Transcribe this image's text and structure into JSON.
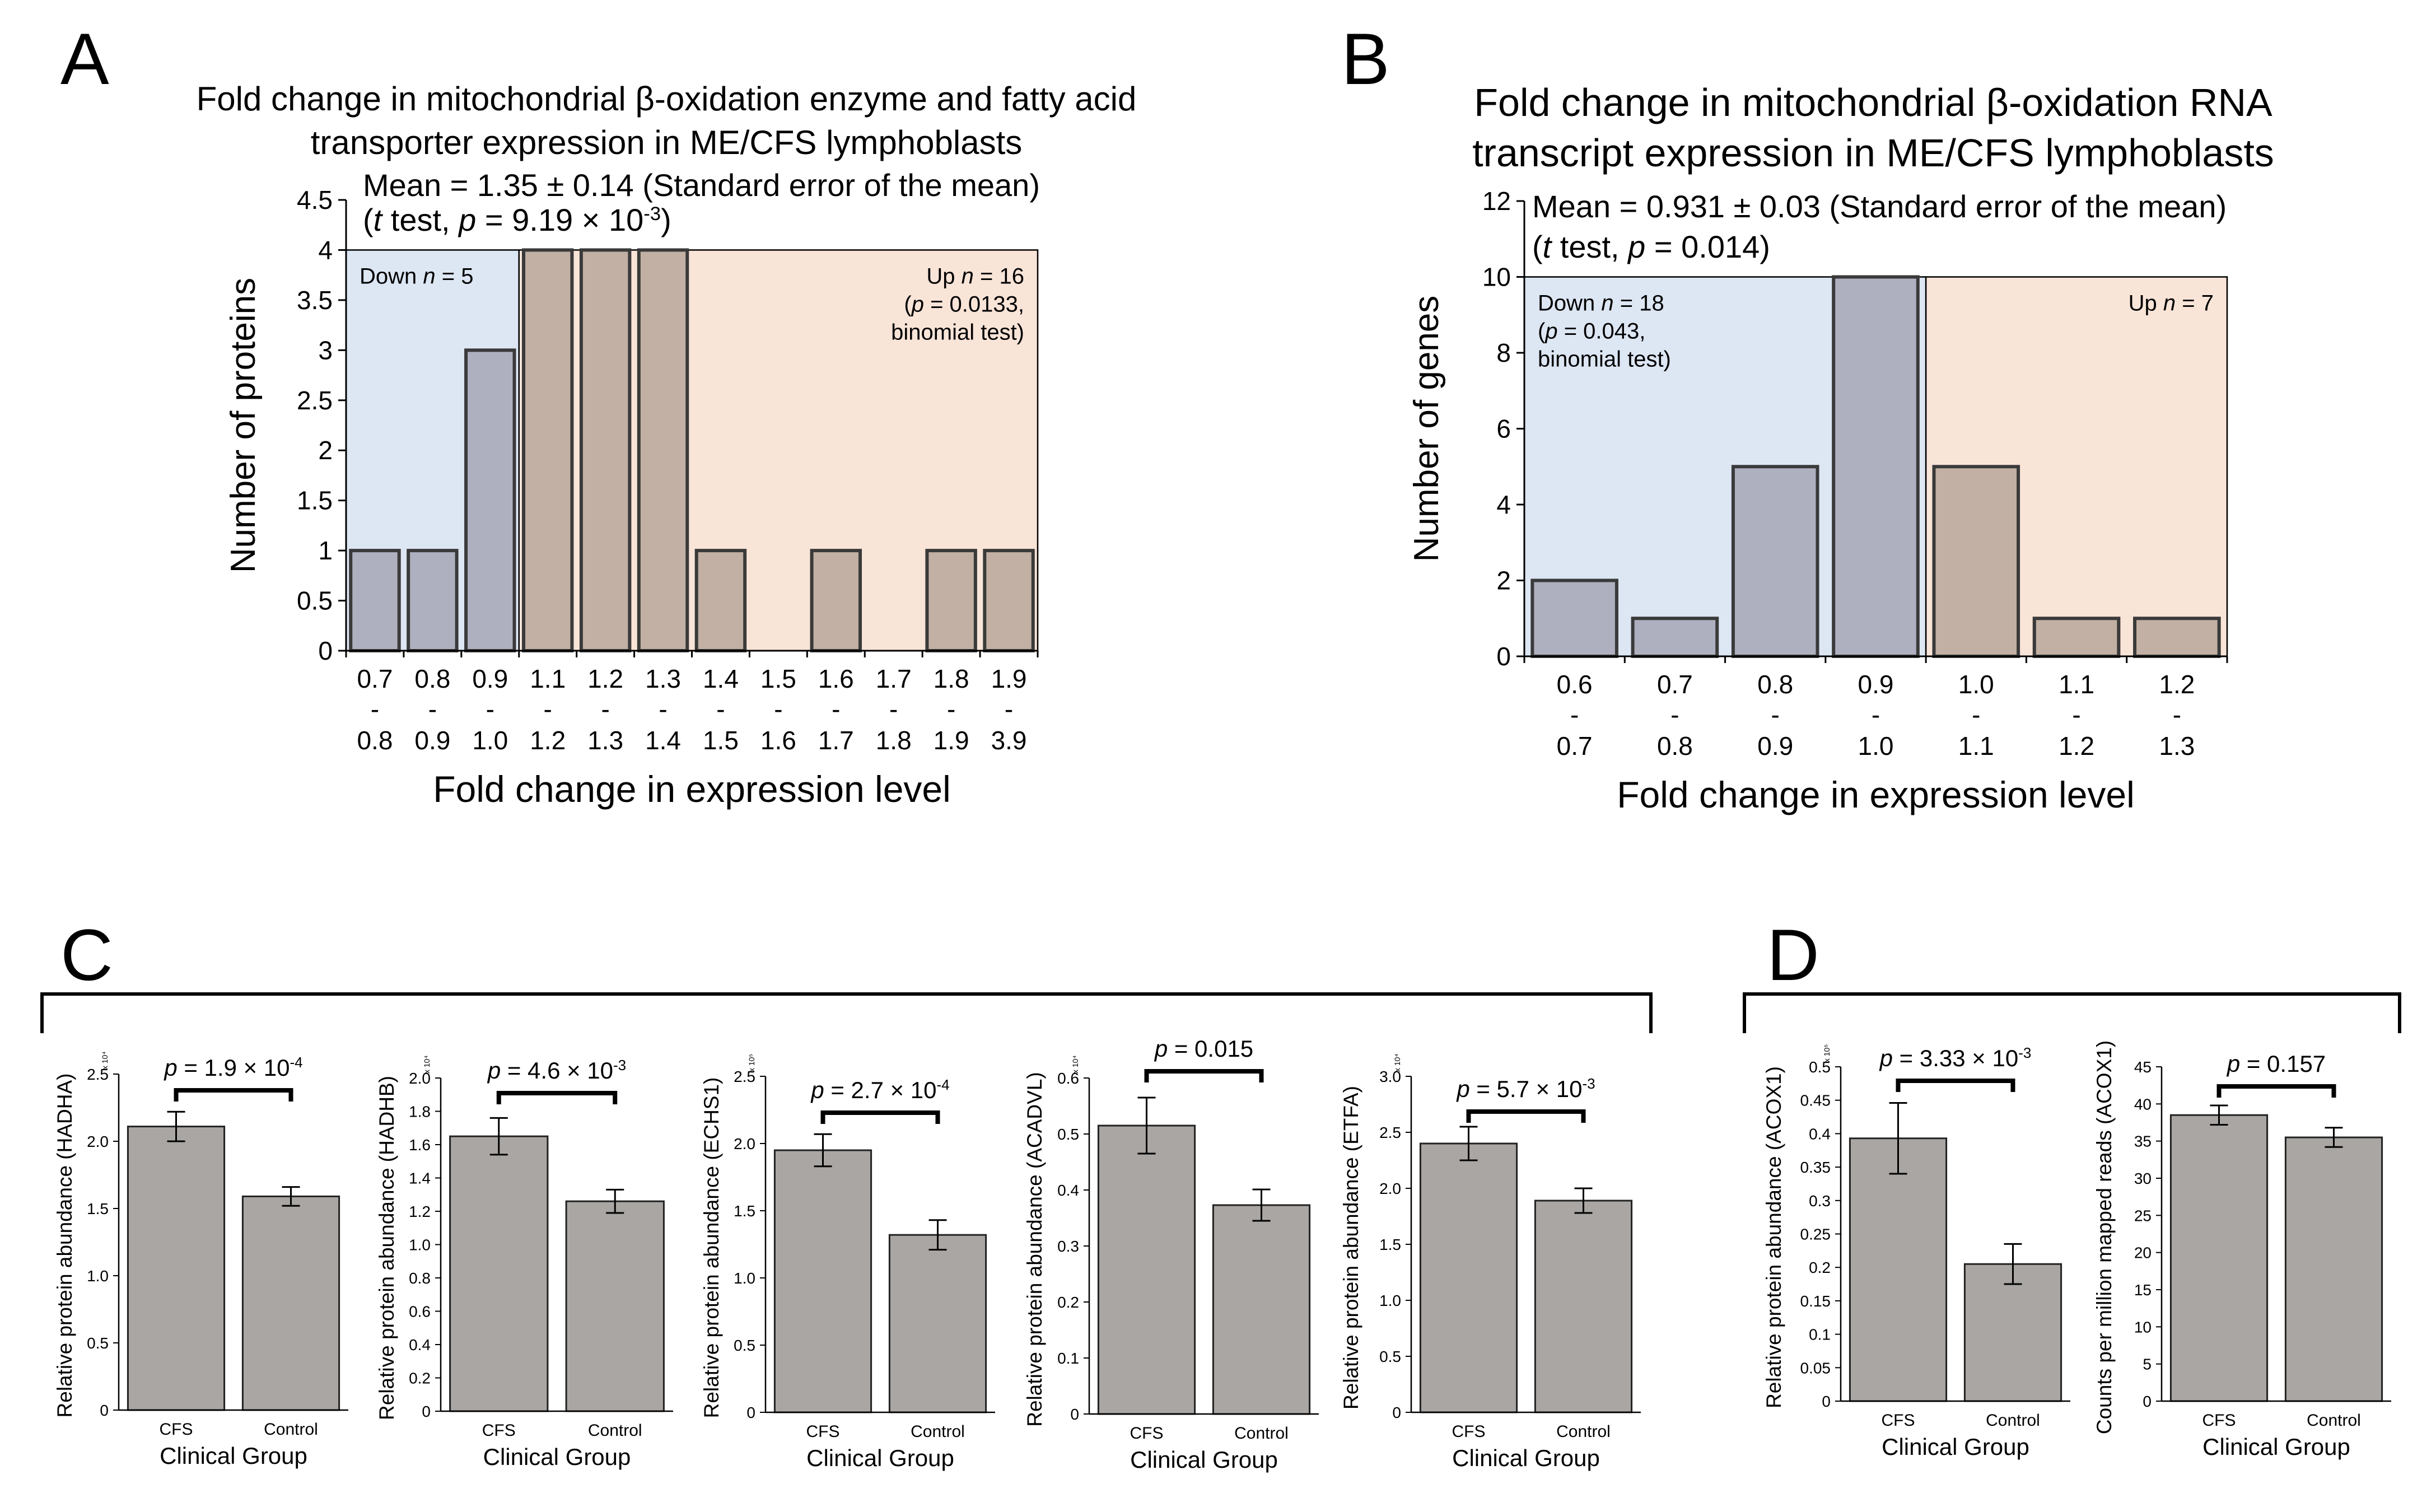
{
  "figure": {
    "background": "#ffffff"
  },
  "colors": {
    "down_bg": "#dde6f3",
    "up_bg": "#f9e4d8",
    "down_bar": "#aeb0bf",
    "up_bar": "#c1b0a3",
    "bar_stroke": "#3a3a3a",
    "gray_bar": "#a9a6a3",
    "axis": "#000000"
  },
  "chart_data": [
    {
      "panel": "A",
      "type": "bar",
      "title": "Fold change in mitochondrial β-oxidation enzyme and fatty acid transporter expression in ME/CFS lymphoblasts",
      "title_lines": [
        "Fold change in mitochondrial β-oxidation enzyme and fatty acid",
        "transporter expression in ME/CFS lymphoblasts"
      ],
      "stats": {
        "mean_text": "Mean = 1.35 ± 0.14 (Standard error of the mean)",
        "ttest_pre": "(",
        "ttest_italic_t": "t",
        "ttest_mid": " test, ",
        "ttest_italic_p": "p",
        "ttest_val": " = 9.19 × 10",
        "ttest_exp": "-3",
        "ttest_post": ")"
      },
      "down_label": {
        "pre": "Down ",
        "italic": "n",
        "post": " = 5"
      },
      "up_label": {
        "pre": "Up ",
        "italic": "n",
        "post": " = 16",
        "line2_pre": "(",
        "line2_italic": "p",
        "line2_post": " = 0.0133,",
        "line3": "binomial test)"
      },
      "ylabel": "Number of proteins",
      "xlabel": "Fold change in expression level",
      "ylim": [
        0,
        4.5
      ],
      "yticks": [
        0,
        0.5,
        1,
        1.5,
        2,
        2.5,
        3,
        3.5,
        4,
        4.5
      ],
      "ytick_labels": [
        "0",
        "0.5",
        "1",
        "1.5",
        "2",
        "2.5",
        "3",
        "3.5",
        "4",
        "4.5"
      ],
      "categories": [
        "0.7-0.8",
        "0.8-0.9",
        "0.9-1.0",
        "1.1-1.2",
        "1.2-1.3",
        "1.3-1.4",
        "1.4-1.5",
        "1.5-1.6",
        "1.6-1.7",
        "1.7-1.8",
        "1.8-1.9",
        "1.9-3.9"
      ],
      "cat_low": [
        "0.7",
        "0.8",
        "0.9",
        "1.1",
        "1.2",
        "1.3",
        "1.4",
        "1.5",
        "1.6",
        "1.7",
        "1.8",
        "1.9"
      ],
      "cat_high": [
        "0.8",
        "0.9",
        "1.0",
        "1.2",
        "1.3",
        "1.4",
        "1.5",
        "1.6",
        "1.7",
        "1.8",
        "1.9",
        "3.9"
      ],
      "values": [
        1,
        1,
        3,
        4,
        4,
        4,
        1,
        0,
        1,
        0,
        1,
        1
      ],
      "group": [
        "down",
        "down",
        "down",
        "up",
        "up",
        "up",
        "up",
        "up",
        "up",
        "up",
        "up",
        "up"
      ],
      "shade_max": 4
    },
    {
      "panel": "B",
      "type": "bar",
      "title": "Fold change in mitochondrial β-oxidation RNA transcript expression in ME/CFS lymphoblasts",
      "title_lines": [
        "Fold change in mitochondrial β-oxidation RNA",
        "transcript expression in ME/CFS lymphoblasts"
      ],
      "stats": {
        "mean_text": "Mean = 0.931 ± 0.03 (Standard error of the mean)",
        "ttest_pre": "(",
        "ttest_italic_t": "t",
        "ttest_mid": " test, ",
        "ttest_italic_p": "p",
        "ttest_val": " = 0.014)"
      },
      "down_label": {
        "pre": "Down ",
        "italic": "n",
        "post": " = 18",
        "line2_pre": "(",
        "line2_italic": "p",
        "line2_post": " = 0.043,",
        "line3": "binomial test)"
      },
      "up_label": {
        "pre": "Up ",
        "italic": "n",
        "post": " = 7"
      },
      "ylabel": "Number of genes",
      "xlabel": "Fold change in expression level",
      "ylim": [
        0,
        12
      ],
      "yticks": [
        0,
        2,
        4,
        6,
        8,
        10,
        12
      ],
      "ytick_labels": [
        "0",
        "2",
        "4",
        "6",
        "8",
        "10",
        "12"
      ],
      "categories": [
        "0.6-0.7",
        "0.7-0.8",
        "0.8-0.9",
        "0.9-1.0",
        "1.0-1.1",
        "1.1-1.2",
        "1.2-1.3"
      ],
      "cat_low": [
        "0.6",
        "0.7",
        "0.8",
        "0.9",
        "1.0",
        "1.1",
        "1.2"
      ],
      "cat_high": [
        "0.7",
        "0.8",
        "0.9",
        "1.0",
        "1.1",
        "1.2",
        "1.3"
      ],
      "values": [
        2,
        1,
        5,
        10,
        5,
        1,
        1
      ],
      "group": [
        "down",
        "down",
        "down",
        "down",
        "up",
        "up",
        "up"
      ],
      "shade_max": 10
    },
    {
      "panel": "C",
      "type": "bar",
      "subplots": [
        {
          "ylabel": "Relative protein abundance (HADHA)",
          "multiplier": "x 10⁴",
          "ylim": [
            0,
            2.5
          ],
          "yticks": [
            0,
            0.5,
            1.0,
            1.5,
            2.0,
            2.5
          ],
          "ytick_labels": [
            "0",
            "0.5",
            "1.0",
            "1.5",
            "2.0",
            "2.5"
          ],
          "categories": [
            "CFS",
            "Control"
          ],
          "values": [
            2.11,
            1.59
          ],
          "errors": [
            0.11,
            0.07
          ],
          "p_label": "p = 1.9 × 10",
          "p_italic": "p",
          "p_rest": " = 1.9 × 10",
          "p_exp": "-4",
          "xlabel": "Clinical Group"
        },
        {
          "ylabel": "Relative protein abundance (HADHB)",
          "multiplier": "x 10⁴",
          "ylim": [
            0,
            2.0
          ],
          "yticks": [
            0,
            0.2,
            0.4,
            0.6,
            0.8,
            1.0,
            1.2,
            1.4,
            1.6,
            1.8,
            2.0
          ],
          "ytick_labels": [
            "0",
            "0.2",
            "0.4",
            "0.6",
            "0.8",
            "1.0",
            "1.2",
            "1.4",
            "1.6",
            "1.8",
            "2.0"
          ],
          "categories": [
            "CFS",
            "Control"
          ],
          "values": [
            1.65,
            1.26
          ],
          "errors": [
            0.11,
            0.07
          ],
          "p_italic": "p",
          "p_rest": " = 4.6 × 10",
          "p_exp": "-3",
          "xlabel": "Clinical Group"
        },
        {
          "ylabel": "Relative protein abundance (ECHS1)",
          "multiplier": "x 10⁵",
          "ylim": [
            0,
            2.5
          ],
          "yticks": [
            0,
            0.5,
            1.0,
            1.5,
            2.0,
            2.5
          ],
          "ytick_labels": [
            "0",
            "0.5",
            "1.0",
            "1.5",
            "2.0",
            "2.5"
          ],
          "categories": [
            "CFS",
            "Control"
          ],
          "values": [
            1.95,
            1.32
          ],
          "errors": [
            0.12,
            0.11
          ],
          "p_italic": "p",
          "p_rest": " = 2.7 × 10",
          "p_exp": "-4",
          "xlabel": "Clinical Group"
        },
        {
          "ylabel": "Relative protein abundance (ACADVL)",
          "multiplier": "x 10⁴",
          "ylim": [
            0,
            0.6
          ],
          "yticks": [
            0,
            0.1,
            0.2,
            0.3,
            0.4,
            0.5,
            0.6
          ],
          "ytick_labels": [
            "0",
            "0.1",
            "0.2",
            "0.3",
            "0.4",
            "0.5",
            "0.6"
          ],
          "categories": [
            "CFS",
            "Control"
          ],
          "values": [
            0.515,
            0.373
          ],
          "errors": [
            0.05,
            0.028
          ],
          "p_italic": "p",
          "p_rest": " = 0.015",
          "p_exp": "",
          "xlabel": "Clinical Group"
        },
        {
          "ylabel": "Relative protein abundance (ETFA)",
          "multiplier": "x 10⁴",
          "ylim": [
            0,
            3.0
          ],
          "yticks": [
            0,
            0.5,
            1.0,
            1.5,
            2.0,
            2.5,
            3.0
          ],
          "ytick_labels": [
            "0",
            "0.5",
            "1.0",
            "1.5",
            "2.0",
            "2.5",
            "3.0"
          ],
          "categories": [
            "CFS",
            "Control"
          ],
          "values": [
            2.4,
            1.89
          ],
          "errors": [
            0.15,
            0.11
          ],
          "p_italic": "p",
          "p_rest": " = 5.7 × 10",
          "p_exp": "-3",
          "xlabel": "Clinical Group"
        }
      ]
    },
    {
      "panel": "D",
      "type": "bar",
      "subplots": [
        {
          "ylabel": "Relative protein abundance (ACOX1)",
          "multiplier": "x 10⁵",
          "ylim": [
            0,
            0.5
          ],
          "yticks": [
            0,
            0.05,
            0.1,
            0.15,
            0.2,
            0.25,
            0.3,
            0.35,
            0.4,
            0.45,
            0.5
          ],
          "ytick_labels": [
            "0",
            "0.05",
            "0.1",
            "0.15",
            "0.2",
            "0.25",
            "0.3",
            "0.35",
            "0.4",
            "0.45",
            "0.5"
          ],
          "categories": [
            "CFS",
            "Control"
          ],
          "values": [
            0.393,
            0.205
          ],
          "errors": [
            0.053,
            0.03
          ],
          "p_italic": "p",
          "p_rest": " = 3.33 × 10",
          "p_exp": "-3",
          "xlabel": "Clinical Group"
        },
        {
          "ylabel": "Counts per million mapped reads (ACOX1)",
          "multiplier": "",
          "ylim": [
            0,
            45
          ],
          "yticks": [
            0,
            5,
            10,
            15,
            20,
            25,
            30,
            35,
            40,
            45
          ],
          "ytick_labels": [
            "0",
            "5",
            "10",
            "15",
            "20",
            "25",
            "30",
            "35",
            "40",
            "45"
          ],
          "categories": [
            "CFS",
            "Control"
          ],
          "values": [
            38.5,
            35.5
          ],
          "errors": [
            1.3,
            1.3
          ],
          "p_italic": "p",
          "p_rest": " = 0.157",
          "p_exp": "",
          "xlabel": "Clinical Group"
        }
      ]
    }
  ],
  "panel_letters": [
    "A",
    "B",
    "C",
    "D"
  ]
}
